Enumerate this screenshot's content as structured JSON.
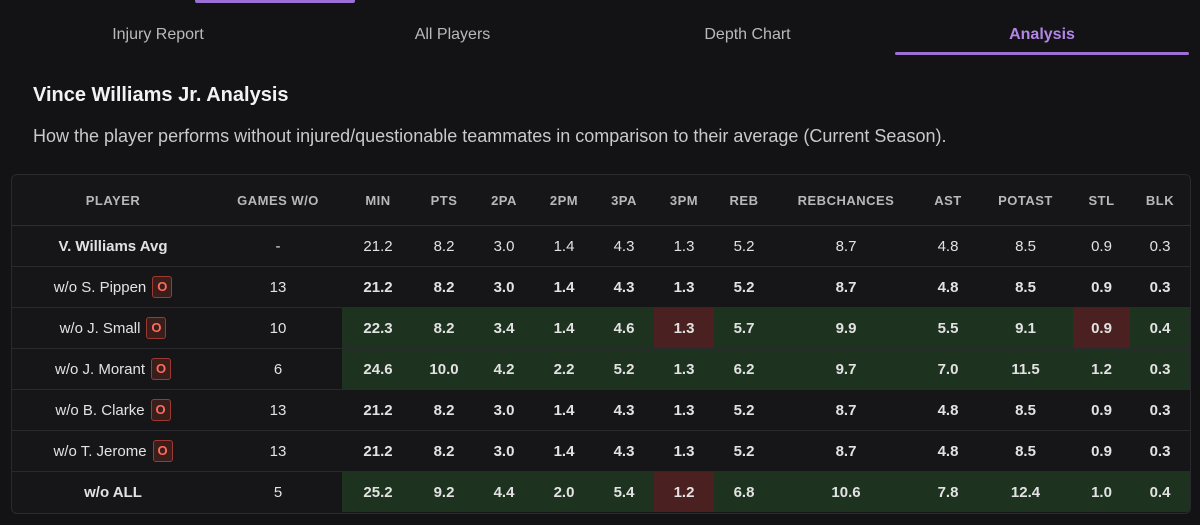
{
  "tabs": [
    {
      "label": "Injury Report"
    },
    {
      "label": "All Players"
    },
    {
      "label": "Depth Chart"
    },
    {
      "label": "Analysis"
    }
  ],
  "active_tab": "Analysis",
  "title": "Vince Williams Jr. Analysis",
  "subtitle": "How the player performs without injured/questionable teammates in comparison to their average (Current Season).",
  "columns": [
    "PLAYER",
    "GAMES W/O",
    "MIN",
    "PTS",
    "2PA",
    "2PM",
    "3PA",
    "3PM",
    "REB",
    "REBCHANCES",
    "AST",
    "POTAST",
    "STL",
    "BLK"
  ],
  "rows": [
    {
      "player": "V. Williams Avg",
      "badge": "",
      "values": [
        "-",
        "21.2",
        "8.2",
        "3.0",
        "1.4",
        "4.3",
        "1.3",
        "5.2",
        "8.7",
        "4.8",
        "8.5",
        "0.9",
        "0.3"
      ],
      "highlights": [
        "",
        "",
        "",
        "",
        "",
        "",
        "",
        "",
        "",
        "",
        "",
        "",
        ""
      ]
    },
    {
      "player": "w/o S. Pippen",
      "badge": "O",
      "values": [
        "13",
        "21.2",
        "8.2",
        "3.0",
        "1.4",
        "4.3",
        "1.3",
        "5.2",
        "8.7",
        "4.8",
        "8.5",
        "0.9",
        "0.3"
      ],
      "highlights": [
        "",
        "",
        "",
        "",
        "",
        "",
        "",
        "",
        "",
        "",
        "",
        "",
        ""
      ]
    },
    {
      "player": "w/o J. Small",
      "badge": "O",
      "values": [
        "10",
        "22.3",
        "8.2",
        "3.4",
        "1.4",
        "4.6",
        "1.3",
        "5.7",
        "9.9",
        "5.5",
        "9.1",
        "0.9",
        "0.4"
      ],
      "highlights": [
        "",
        "green",
        "green",
        "green",
        "green",
        "green",
        "red",
        "green",
        "green",
        "green",
        "green",
        "red",
        "green"
      ]
    },
    {
      "player": "w/o J. Morant",
      "badge": "O",
      "values": [
        "6",
        "24.6",
        "10.0",
        "4.2",
        "2.2",
        "5.2",
        "1.3",
        "6.2",
        "9.7",
        "7.0",
        "11.5",
        "1.2",
        "0.3"
      ],
      "highlights": [
        "",
        "green",
        "green",
        "green",
        "green",
        "green",
        "green",
        "green",
        "green",
        "green",
        "green",
        "green",
        "green"
      ]
    },
    {
      "player": "w/o B. Clarke",
      "badge": "O",
      "values": [
        "13",
        "21.2",
        "8.2",
        "3.0",
        "1.4",
        "4.3",
        "1.3",
        "5.2",
        "8.7",
        "4.8",
        "8.5",
        "0.9",
        "0.3"
      ],
      "highlights": [
        "",
        "",
        "",
        "",
        "",
        "",
        "",
        "",
        "",
        "",
        "",
        "",
        ""
      ]
    },
    {
      "player": "w/o T. Jerome",
      "badge": "O",
      "values": [
        "13",
        "21.2",
        "8.2",
        "3.0",
        "1.4",
        "4.3",
        "1.3",
        "5.2",
        "8.7",
        "4.8",
        "8.5",
        "0.9",
        "0.3"
      ],
      "highlights": [
        "",
        "",
        "",
        "",
        "",
        "",
        "",
        "",
        "",
        "",
        "",
        "",
        ""
      ]
    },
    {
      "player": "w/o ALL",
      "badge": "",
      "values": [
        "5",
        "25.2",
        "9.2",
        "4.4",
        "2.0",
        "5.4",
        "1.2",
        "6.8",
        "10.6",
        "7.8",
        "12.4",
        "1.0",
        "0.4"
      ],
      "highlights": [
        "",
        "green",
        "green",
        "green",
        "green",
        "green",
        "red",
        "green",
        "green",
        "green",
        "green",
        "green",
        "green"
      ]
    }
  ],
  "colors": {
    "accent": "#9b6fd4",
    "positive_cell": "#1e3220",
    "negative_cell": "#4a2020",
    "badge_text": "#ff6b5a"
  }
}
